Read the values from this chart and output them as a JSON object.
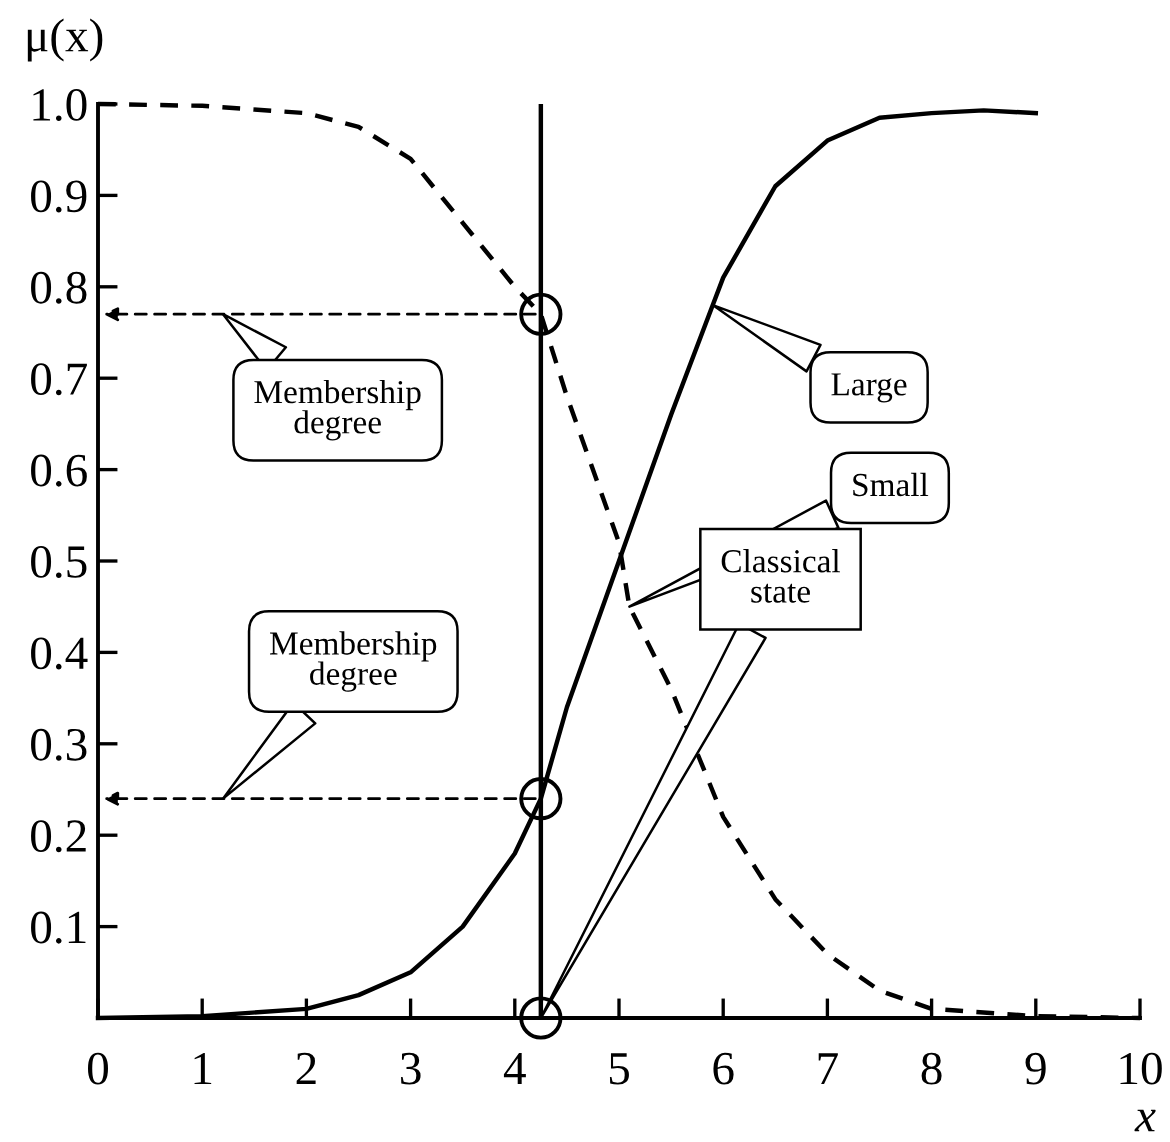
{
  "chart_data": {
    "type": "line",
    "xlabel": "x",
    "ylabel": "μ(x)",
    "xlim": [
      0,
      10
    ],
    "ylim": [
      0,
      1.0
    ],
    "xticks": [
      0,
      1,
      2,
      3,
      4,
      5,
      6,
      7,
      8,
      9,
      10
    ],
    "yticks": [
      {
        "value": 0,
        "label": null
      },
      0.1,
      0.2,
      0.3,
      0.4,
      0.5,
      0.6,
      0.7,
      0.8,
      0.9,
      {
        "value": 1.0,
        "label": "1.0"
      }
    ],
    "grid": false,
    "series": [
      {
        "color": "#000000",
        "line_style": "solid",
        "x": [
          0,
          1,
          2,
          2.5,
          3,
          3.5,
          4,
          4.25,
          4.5,
          5,
          5.5,
          5.9,
          6,
          6.5,
          7,
          7.5,
          8,
          8.5,
          9
        ],
        "values": [
          0.0,
          0.002,
          0.01,
          0.025,
          0.05,
          0.1,
          0.18,
          0.24,
          0.34,
          0.5,
          0.66,
          0.78,
          0.81,
          0.91,
          0.96,
          0.985,
          0.99,
          0.993,
          0.99
        ]
      },
      {
        "color": "#000000",
        "line_style": "dashed",
        "x": [
          0,
          1,
          2,
          2.5,
          3,
          3.5,
          4,
          4.25,
          4.5,
          5,
          5.1,
          5.5,
          6,
          6.5,
          7,
          7.5,
          8,
          9,
          10
        ],
        "values": [
          1.0,
          0.998,
          0.99,
          0.975,
          0.94,
          0.87,
          0.8,
          0.77,
          0.68,
          0.52,
          0.45,
          0.36,
          0.22,
          0.13,
          0.07,
          0.03,
          0.01,
          0.002,
          0.0
        ]
      },
      {
        "type": "scatter",
        "marker": "circle",
        "color": "#000000",
        "x": [
          4.25,
          4.25,
          4.25
        ],
        "values": [
          0.77,
          0.24,
          0.0
        ]
      }
    ],
    "ref_lines": [
      {
        "axis": "x",
        "value": 4.25,
        "color": "#000000",
        "line_style": "solid"
      }
    ],
    "annotations": [
      "Membership degree",
      "Membership degree",
      "Large",
      "Small",
      "Classical state"
    ]
  }
}
